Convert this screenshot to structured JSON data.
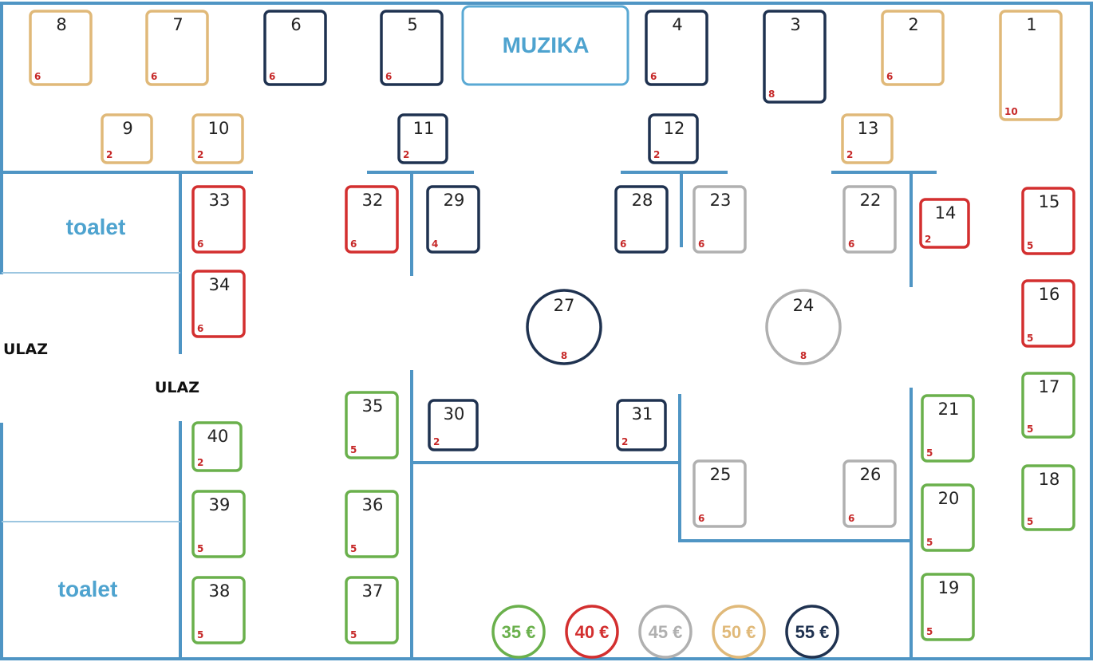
{
  "labels": {
    "muzika": "MUZIKA",
    "toalet_top": "toalet",
    "toalet_bottom": "toalet",
    "ulaz_left": "ULAZ",
    "ulaz_inner": "ULAZ"
  },
  "price_classes": {
    "green": {
      "label": "35 €",
      "color": "#6ab04c"
    },
    "red": {
      "label": "40 €",
      "color": "#d32f2f"
    },
    "gray": {
      "label": "45 €",
      "color": "#b0b0b0"
    },
    "gold": {
      "label": "50 €",
      "color": "#e0b979"
    },
    "navy": {
      "label": "55 €",
      "color": "#1f3250"
    }
  },
  "legend": [
    "green",
    "red",
    "gray",
    "gold",
    "navy"
  ],
  "tables": [
    {
      "id": "1",
      "seats": "10",
      "price": "gold"
    },
    {
      "id": "2",
      "seats": "6",
      "price": "gold"
    },
    {
      "id": "3",
      "seats": "8",
      "price": "navy"
    },
    {
      "id": "4",
      "seats": "6",
      "price": "navy"
    },
    {
      "id": "5",
      "seats": "6",
      "price": "navy"
    },
    {
      "id": "6",
      "seats": "6",
      "price": "navy"
    },
    {
      "id": "7",
      "seats": "6",
      "price": "gold"
    },
    {
      "id": "8",
      "seats": "6",
      "price": "gold"
    },
    {
      "id": "9",
      "seats": "2",
      "price": "gold"
    },
    {
      "id": "10",
      "seats": "2",
      "price": "gold"
    },
    {
      "id": "11",
      "seats": "2",
      "price": "navy"
    },
    {
      "id": "12",
      "seats": "2",
      "price": "navy"
    },
    {
      "id": "13",
      "seats": "2",
      "price": "gold"
    },
    {
      "id": "14",
      "seats": "2",
      "price": "red"
    },
    {
      "id": "15",
      "seats": "5",
      "price": "red"
    },
    {
      "id": "16",
      "seats": "5",
      "price": "red"
    },
    {
      "id": "17",
      "seats": "5",
      "price": "green"
    },
    {
      "id": "18",
      "seats": "5",
      "price": "green"
    },
    {
      "id": "19",
      "seats": "5",
      "price": "green"
    },
    {
      "id": "20",
      "seats": "5",
      "price": "green"
    },
    {
      "id": "21",
      "seats": "5",
      "price": "green"
    },
    {
      "id": "22",
      "seats": "6",
      "price": "gray"
    },
    {
      "id": "23",
      "seats": "6",
      "price": "gray"
    },
    {
      "id": "24",
      "seats": "8",
      "price": "gray"
    },
    {
      "id": "25",
      "seats": "6",
      "price": "gray"
    },
    {
      "id": "26",
      "seats": "6",
      "price": "gray"
    },
    {
      "id": "27",
      "seats": "8",
      "price": "navy"
    },
    {
      "id": "28",
      "seats": "6",
      "price": "navy"
    },
    {
      "id": "29",
      "seats": "4",
      "price": "navy"
    },
    {
      "id": "30",
      "seats": "2",
      "price": "navy"
    },
    {
      "id": "31",
      "seats": "2",
      "price": "navy"
    },
    {
      "id": "32",
      "seats": "6",
      "price": "red"
    },
    {
      "id": "33",
      "seats": "6",
      "price": "red"
    },
    {
      "id": "34",
      "seats": "6",
      "price": "red"
    },
    {
      "id": "35",
      "seats": "5",
      "price": "green"
    },
    {
      "id": "36",
      "seats": "5",
      "price": "green"
    },
    {
      "id": "37",
      "seats": "5",
      "price": "green"
    },
    {
      "id": "38",
      "seats": "5",
      "price": "green"
    },
    {
      "id": "39",
      "seats": "5",
      "price": "green"
    },
    {
      "id": "40",
      "seats": "2",
      "price": "green"
    }
  ]
}
